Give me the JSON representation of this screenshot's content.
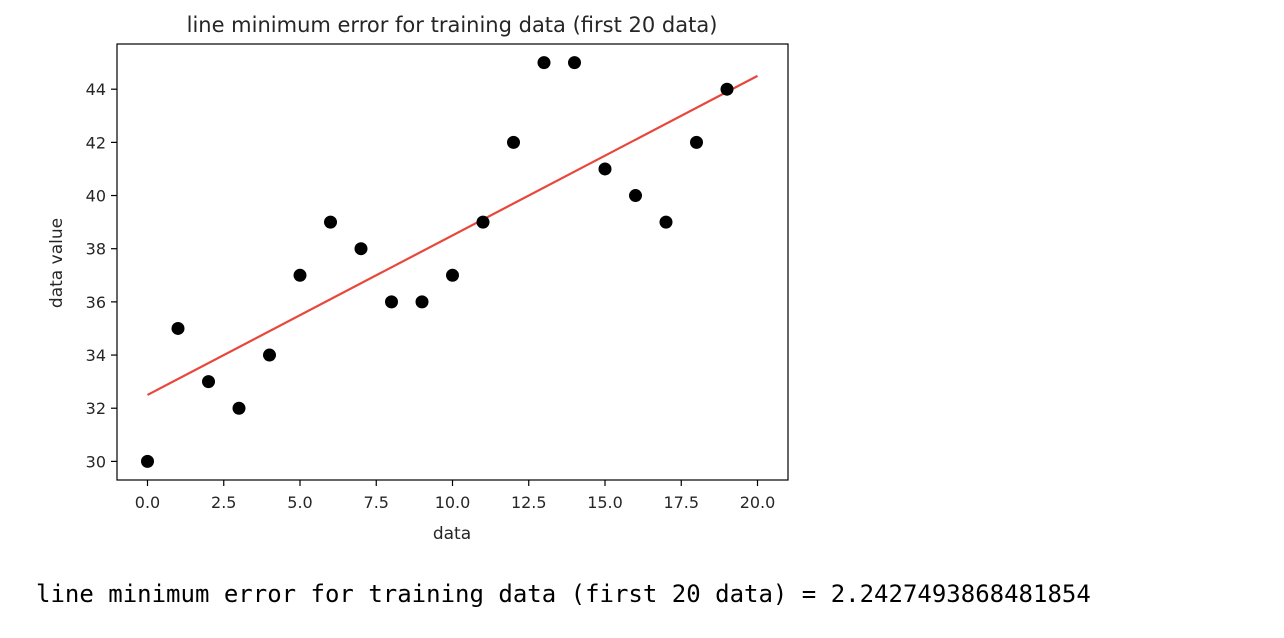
{
  "chart_data": {
    "type": "scatter",
    "title": "line minimum error for training data (first 20 data)",
    "xlabel": "data",
    "ylabel": "data value",
    "xlim": [
      -1,
      21
    ],
    "ylim": [
      29.3,
      45.7
    ],
    "xticks": [
      0.0,
      2.5,
      5.0,
      7.5,
      10.0,
      12.5,
      15.0,
      17.5,
      20.0
    ],
    "xtick_labels": [
      "0.0",
      "2.5",
      "5.0",
      "7.5",
      "10.0",
      "12.5",
      "15.0",
      "17.5",
      "20.0"
    ],
    "yticks": [
      30,
      32,
      34,
      36,
      38,
      40,
      42,
      44
    ],
    "ytick_labels": [
      "30",
      "32",
      "34",
      "36",
      "38",
      "40",
      "42",
      "44"
    ],
    "grid": false,
    "series": [
      {
        "type": "scatter",
        "color": "#000000",
        "x": [
          0,
          1,
          2,
          3,
          4,
          5,
          6,
          7,
          8,
          9,
          10,
          11,
          12,
          13,
          14,
          15,
          16,
          17,
          18,
          19
        ],
        "y": [
          30,
          35,
          33,
          32,
          34,
          37,
          39,
          38,
          36,
          36,
          37,
          39,
          42,
          45,
          45,
          41,
          40,
          39,
          42,
          44
        ]
      },
      {
        "type": "line",
        "color": "#e8473b",
        "x": [
          0,
          20
        ],
        "y": [
          32.5,
          44.5
        ]
      }
    ]
  },
  "output": {
    "text": "line minimum error for training data (first 20 data) = 2.2427493868481854"
  }
}
